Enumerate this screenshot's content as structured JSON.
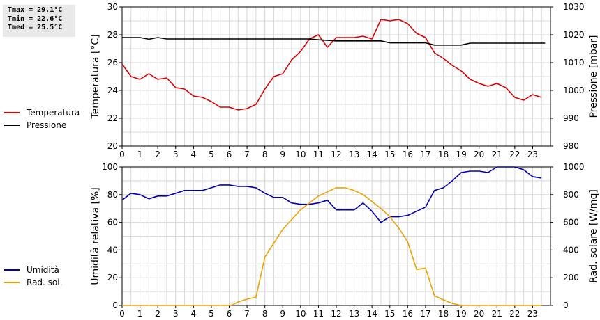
{
  "stats": {
    "tmax": "Tmax = 29.1°C",
    "tmin": "Tmin = 22.6°C",
    "tmed": "Tmed = 25.5°C"
  },
  "colors": {
    "temperature": "#dd0000",
    "pressure": "#000000",
    "humidity": "#0000bb",
    "solar": "#f0a000",
    "grid": "#d8d8d8"
  },
  "legend_top": [
    {
      "label": "Temperatura",
      "color": "#dd0000"
    },
    {
      "label": "Pressione",
      "color": "#000000"
    }
  ],
  "legend_bottom": [
    {
      "label": "Umidità",
      "color": "#0000bb"
    },
    {
      "label": "Rad. sol.",
      "color": "#f0a000"
    }
  ],
  "chart_data": [
    {
      "type": "line",
      "xlabel": "",
      "x_ticks": [
        0,
        1,
        2,
        3,
        4,
        5,
        6,
        7,
        8,
        9,
        10,
        11,
        12,
        13,
        14,
        15,
        16,
        17,
        18,
        19,
        20,
        21,
        22,
        23
      ],
      "xlim": [
        0,
        24
      ],
      "y_left": {
        "label": "Temperatura [°C]",
        "lim": [
          20,
          30
        ],
        "ticks": [
          20,
          22,
          24,
          26,
          28,
          30
        ]
      },
      "y_right": {
        "label": "Pressione [mbar]",
        "lim": [
          980,
          1030
        ],
        "ticks": [
          980,
          990,
          1000,
          1010,
          1020,
          1030
        ]
      },
      "grid": true,
      "series": [
        {
          "name": "Temperatura",
          "axis": "left",
          "x": [
            0,
            0.5,
            1,
            1.5,
            2,
            2.5,
            3,
            3.5,
            4,
            4.5,
            5,
            5.5,
            6,
            6.5,
            7,
            7.5,
            8,
            8.5,
            9,
            9.5,
            10,
            10.5,
            11,
            11.5,
            12,
            12.5,
            13,
            13.5,
            14,
            14.5,
            15,
            15.5,
            16,
            16.5,
            17,
            17.5,
            18,
            18.5,
            19,
            19.5,
            20,
            20.5,
            21,
            21.5,
            22,
            22.5,
            23,
            23.5
          ],
          "y": [
            25.9,
            25.0,
            24.8,
            25.2,
            24.8,
            24.9,
            24.2,
            24.1,
            23.6,
            23.5,
            23.2,
            22.8,
            22.8,
            22.6,
            22.7,
            23.0,
            24.1,
            25.0,
            25.2,
            26.2,
            26.8,
            27.7,
            28.0,
            27.1,
            27.8,
            27.8,
            27.8,
            27.9,
            27.7,
            29.1,
            29.0,
            29.1,
            28.8,
            28.1,
            27.8,
            26.7,
            26.3,
            25.8,
            25.4,
            24.8,
            24.5,
            24.3,
            24.5,
            24.2,
            23.5,
            23.3,
            23.7,
            23.5
          ]
        },
        {
          "name": "Pressione",
          "axis": "right",
          "x": [
            0,
            1,
            1.5,
            2,
            2.5,
            3,
            4,
            5,
            6,
            7,
            8,
            9,
            10,
            10.5,
            11,
            12,
            13,
            14,
            14.5,
            15,
            16,
            17,
            17.5,
            18,
            18.5,
            19,
            19.5,
            20,
            21,
            22,
            23,
            23.7
          ],
          "y": [
            1019,
            1019,
            1018.4,
            1019,
            1018.5,
            1018.5,
            1018.5,
            1018.5,
            1018.5,
            1018.5,
            1018.5,
            1018.5,
            1018.5,
            1018.5,
            1018.2,
            1017.8,
            1017.8,
            1017.8,
            1017.8,
            1017.1,
            1017.1,
            1017.1,
            1016.3,
            1016.3,
            1016.3,
            1016.3,
            1017.0,
            1017.0,
            1017.0,
            1017.0,
            1017.0,
            1017.0
          ]
        }
      ]
    },
    {
      "type": "line",
      "xlabel": "",
      "x_ticks": [
        0,
        1,
        2,
        3,
        4,
        5,
        6,
        7,
        8,
        9,
        10,
        11,
        12,
        13,
        14,
        15,
        16,
        17,
        18,
        19,
        20,
        21,
        22,
        23
      ],
      "xlim": [
        0,
        24
      ],
      "y_left": {
        "label": "Umidità relativa [%]",
        "lim": [
          0,
          100
        ],
        "ticks": [
          0,
          20,
          40,
          60,
          80,
          100
        ]
      },
      "y_right": {
        "label": "Rad. solare [W/mq]",
        "lim": [
          0,
          1000
        ],
        "ticks": [
          0,
          200,
          400,
          600,
          800,
          1000
        ]
      },
      "grid": true,
      "series": [
        {
          "name": "Umidità",
          "axis": "left",
          "x": [
            0,
            0.5,
            1,
            1.5,
            2,
            2.5,
            3,
            3.5,
            4,
            4.5,
            5,
            5.5,
            6,
            6.5,
            7,
            7.5,
            8,
            8.5,
            9,
            9.5,
            10,
            10.5,
            11,
            11.5,
            12,
            12.5,
            13,
            13.5,
            14,
            14.5,
            15,
            15.5,
            16,
            16.5,
            17,
            17.5,
            18,
            18.5,
            19,
            19.5,
            20,
            20.5,
            21,
            21.5,
            22,
            22.5,
            23,
            23.5
          ],
          "y": [
            76,
            81,
            80,
            77,
            79,
            79,
            81,
            83,
            83,
            83,
            85,
            87,
            87,
            86,
            86,
            85,
            81,
            78,
            78,
            74,
            73,
            73,
            74,
            76,
            69,
            69,
            69,
            74,
            68,
            60,
            64,
            64,
            65,
            68,
            71,
            83,
            85,
            90,
            96,
            97,
            97,
            96,
            100,
            100,
            100,
            98,
            93,
            92
          ]
        },
        {
          "name": "Rad. sol.",
          "axis": "right",
          "x": [
            0,
            1,
            2,
            3,
            4,
            5,
            6,
            6.2,
            6.5,
            7,
            7.5,
            8,
            8.5,
            9,
            9.5,
            10,
            10.5,
            11,
            11.5,
            12,
            12.5,
            13,
            13.5,
            14,
            14.5,
            15,
            15.5,
            16,
            16.5,
            17,
            17.5,
            18,
            18.5,
            19,
            20,
            21,
            22,
            23,
            23.5
          ],
          "y": [
            0,
            0,
            0,
            0,
            0,
            0,
            0,
            5,
            25,
            45,
            60,
            350,
            450,
            550,
            620,
            690,
            740,
            790,
            820,
            850,
            850,
            830,
            800,
            750,
            700,
            640,
            560,
            460,
            260,
            270,
            70,
            40,
            15,
            0,
            0,
            0,
            0,
            0,
            0
          ]
        }
      ]
    }
  ]
}
